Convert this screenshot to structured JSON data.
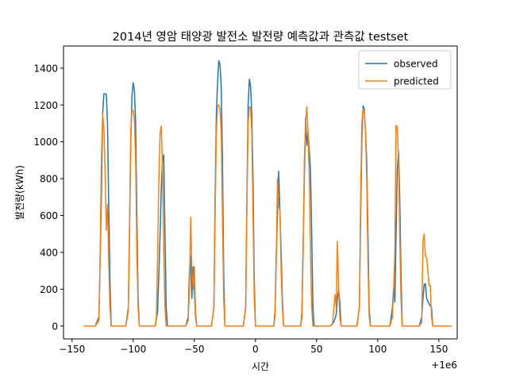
{
  "chart_data": {
    "type": "line",
    "title": "2014년 영암 태양광 발전소 발전량 예측값과 관측값 testset",
    "xlabel": "시간",
    "ylabel": "발전량(kWh)",
    "x_offset_label": "+1e6",
    "xlim": [
      -157,
      165
    ],
    "ylim": [
      -70,
      1520
    ],
    "x_ticks": [
      -150,
      -100,
      -50,
      0,
      50,
      100,
      150
    ],
    "x_tick_labels": [
      "−150",
      "−100",
      "−50",
      "0",
      "50",
      "100",
      "150"
    ],
    "y_ticks": [
      0,
      200,
      400,
      600,
      800,
      1000,
      1200,
      1400
    ],
    "y_tick_labels": [
      "0",
      "200",
      "400",
      "600",
      "800",
      "1000",
      "1200",
      "1400"
    ],
    "legend_position": "top-right",
    "grid": false,
    "series": [
      {
        "name": "observed",
        "color": "#1f77b4",
        "points": [
          [
            -140,
            0
          ],
          [
            -131,
            0
          ],
          [
            -128,
            50
          ],
          [
            -126,
            700
          ],
          [
            -125,
            1150
          ],
          [
            -124,
            1260
          ],
          [
            -122,
            1260
          ],
          [
            -121,
            1100
          ],
          [
            -120,
            650
          ],
          [
            -119,
            250
          ],
          [
            -118,
            0
          ],
          [
            -106,
            0
          ],
          [
            -104,
            100
          ],
          [
            -103,
            500
          ],
          [
            -102,
            1000
          ],
          [
            -101,
            1250
          ],
          [
            -100,
            1320
          ],
          [
            -99,
            1280
          ],
          [
            -98,
            1100
          ],
          [
            -97,
            600
          ],
          [
            -96,
            150
          ],
          [
            -95,
            0
          ],
          [
            -82,
            0
          ],
          [
            -80,
            80
          ],
          [
            -78,
            500
          ],
          [
            -77,
            750
          ],
          [
            -76,
            900
          ],
          [
            -75,
            930
          ],
          [
            -74,
            500
          ],
          [
            -73,
            100
          ],
          [
            -72,
            0
          ],
          [
            -57,
            0
          ],
          [
            -55,
            50
          ],
          [
            -54,
            300
          ],
          [
            -53,
            380
          ],
          [
            -52,
            150
          ],
          [
            -51,
            320
          ],
          [
            -50,
            200
          ],
          [
            -49,
            50
          ],
          [
            -48,
            0
          ],
          [
            -36,
            0
          ],
          [
            -34,
            100
          ],
          [
            -33,
            700
          ],
          [
            -32,
            1150
          ],
          [
            -31,
            1320
          ],
          [
            -30,
            1440
          ],
          [
            -29,
            1420
          ],
          [
            -28,
            1300
          ],
          [
            -27,
            900
          ],
          [
            -26,
            300
          ],
          [
            -25,
            0
          ],
          [
            -10,
            0
          ],
          [
            -8,
            100
          ],
          [
            -7,
            700
          ],
          [
            -6,
            1200
          ],
          [
            -5,
            1340
          ],
          [
            -4,
            1300
          ],
          [
            -3,
            1150
          ],
          [
            -2,
            800
          ],
          [
            -1,
            250
          ],
          [
            0,
            0
          ],
          [
            15,
            0
          ],
          [
            16,
            80
          ],
          [
            17,
            400
          ],
          [
            18,
            600
          ],
          [
            19,
            840
          ],
          [
            20,
            620
          ],
          [
            21,
            400
          ],
          [
            22,
            150
          ],
          [
            23,
            0
          ],
          [
            37,
            0
          ],
          [
            38,
            80
          ],
          [
            39,
            450
          ],
          [
            40,
            800
          ],
          [
            41,
            1130
          ],
          [
            42,
            980
          ],
          [
            43,
            1050
          ],
          [
            44,
            950
          ],
          [
            45,
            850
          ],
          [
            46,
            500
          ],
          [
            47,
            100
          ],
          [
            48,
            0
          ],
          [
            61,
            0
          ],
          [
            64,
            20
          ],
          [
            66,
            60
          ],
          [
            67,
            150
          ],
          [
            68,
            200
          ],
          [
            69,
            130
          ],
          [
            70,
            0
          ],
          [
            83,
            0
          ],
          [
            85,
            100
          ],
          [
            86,
            600
          ],
          [
            87,
            1000
          ],
          [
            88,
            1195
          ],
          [
            89,
            1180
          ],
          [
            90,
            1050
          ],
          [
            91,
            900
          ],
          [
            92,
            500
          ],
          [
            93,
            100
          ],
          [
            94,
            0
          ],
          [
            110,
            0
          ],
          [
            112,
            100
          ],
          [
            113,
            210
          ],
          [
            114,
            130
          ],
          [
            115,
            500
          ],
          [
            116,
            850
          ],
          [
            117,
            950
          ],
          [
            118,
            700
          ],
          [
            119,
            300
          ],
          [
            120,
            0
          ],
          [
            134,
            0
          ],
          [
            136,
            50
          ],
          [
            137,
            150
          ],
          [
            138,
            225
          ],
          [
            139,
            230
          ],
          [
            140,
            150
          ],
          [
            142,
            120
          ],
          [
            144,
            100
          ],
          [
            145,
            0
          ],
          [
            160,
            0
          ]
        ]
      },
      {
        "name": "predicted",
        "color": "#ff7f0e",
        "points": [
          [
            -140,
            0
          ],
          [
            -131,
            0
          ],
          [
            -128,
            30
          ],
          [
            -127,
            400
          ],
          [
            -126,
            900
          ],
          [
            -125,
            1150
          ],
          [
            -124,
            1080
          ],
          [
            -123,
            850
          ],
          [
            -122,
            520
          ],
          [
            -121,
            660
          ],
          [
            -120,
            350
          ],
          [
            -119,
            100
          ],
          [
            -118,
            0
          ],
          [
            -106,
            0
          ],
          [
            -104,
            80
          ],
          [
            -103,
            550
          ],
          [
            -102,
            1050
          ],
          [
            -101,
            1175
          ],
          [
            -100,
            1170
          ],
          [
            -99,
            1120
          ],
          [
            -98,
            900
          ],
          [
            -97,
            400
          ],
          [
            -96,
            100
          ],
          [
            -95,
            0
          ],
          [
            -82,
            0
          ],
          [
            -81,
            50
          ],
          [
            -80,
            400
          ],
          [
            -79,
            800
          ],
          [
            -78,
            1050
          ],
          [
            -77,
            1085
          ],
          [
            -76,
            850
          ],
          [
            -75,
            400
          ],
          [
            -74,
            100
          ],
          [
            -73,
            0
          ],
          [
            -57,
            0
          ],
          [
            -55,
            30
          ],
          [
            -54,
            200
          ],
          [
            -53,
            590
          ],
          [
            -52,
            300
          ],
          [
            -51,
            200
          ],
          [
            -50,
            325
          ],
          [
            -49,
            80
          ],
          [
            -48,
            0
          ],
          [
            -36,
            0
          ],
          [
            -34,
            100
          ],
          [
            -33,
            600
          ],
          [
            -32,
            1050
          ],
          [
            -31,
            1200
          ],
          [
            -30,
            1200
          ],
          [
            -29,
            1180
          ],
          [
            -28,
            1050
          ],
          [
            -27,
            600
          ],
          [
            -26,
            150
          ],
          [
            -25,
            0
          ],
          [
            -10,
            0
          ],
          [
            -8,
            100
          ],
          [
            -7,
            650
          ],
          [
            -6,
            1100
          ],
          [
            -5,
            1190
          ],
          [
            -4,
            1185
          ],
          [
            -3,
            1050
          ],
          [
            -2,
            600
          ],
          [
            -1,
            150
          ],
          [
            0,
            0
          ],
          [
            15,
            0
          ],
          [
            16,
            50
          ],
          [
            17,
            350
          ],
          [
            18,
            800
          ],
          [
            19,
            650
          ],
          [
            20,
            630
          ],
          [
            21,
            300
          ],
          [
            22,
            100
          ],
          [
            23,
            0
          ],
          [
            37,
            0
          ],
          [
            38,
            50
          ],
          [
            39,
            400
          ],
          [
            40,
            900
          ],
          [
            41,
            1100
          ],
          [
            42,
            1190
          ],
          [
            43,
            1050
          ],
          [
            44,
            800
          ],
          [
            45,
            400
          ],
          [
            46,
            100
          ],
          [
            47,
            0
          ],
          [
            61,
            0
          ],
          [
            63,
            10
          ],
          [
            65,
            170
          ],
          [
            66,
            100
          ],
          [
            67,
            460
          ],
          [
            68,
            200
          ],
          [
            69,
            50
          ],
          [
            70,
            0
          ],
          [
            83,
            0
          ],
          [
            85,
            100
          ],
          [
            86,
            700
          ],
          [
            87,
            1100
          ],
          [
            88,
            1180
          ],
          [
            89,
            1170
          ],
          [
            90,
            1050
          ],
          [
            91,
            800
          ],
          [
            92,
            350
          ],
          [
            93,
            50
          ],
          [
            94,
            0
          ],
          [
            110,
            0
          ],
          [
            112,
            50
          ],
          [
            113,
            200
          ],
          [
            114,
            400
          ],
          [
            115,
            1090
          ],
          [
            116,
            1080
          ],
          [
            117,
            900
          ],
          [
            118,
            500
          ],
          [
            119,
            150
          ],
          [
            120,
            0
          ],
          [
            134,
            0
          ],
          [
            136,
            20
          ],
          [
            137,
            460
          ],
          [
            138,
            500
          ],
          [
            139,
            380
          ],
          [
            140,
            370
          ],
          [
            141,
            300
          ],
          [
            142,
            220
          ],
          [
            143,
            220
          ],
          [
            144,
            50
          ],
          [
            145,
            0
          ],
          [
            160,
            0
          ]
        ]
      }
    ]
  }
}
